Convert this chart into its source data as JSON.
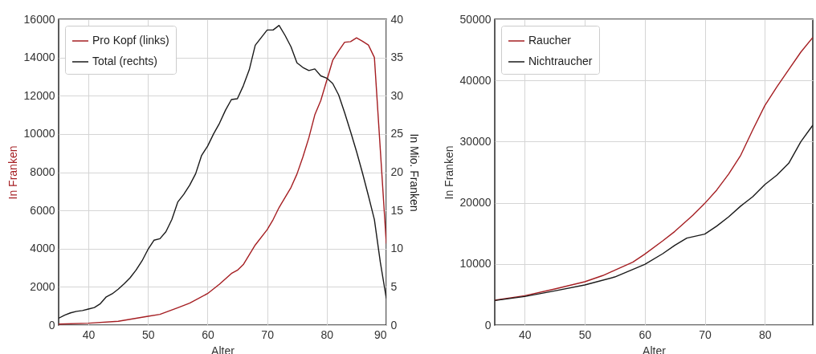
{
  "chart_data": [
    {
      "type": "line",
      "xlabel": "Alter",
      "ylabel": "In Franken",
      "y2label": "In Mio. Franken",
      "xlim": [
        35,
        90
      ],
      "xticks": [
        40,
        50,
        60,
        70,
        80,
        90
      ],
      "ylim": [
        0,
        16000
      ],
      "yticks": [
        0,
        2000,
        4000,
        6000,
        8000,
        10000,
        12000,
        14000,
        16000
      ],
      "y2lim": [
        0,
        40
      ],
      "y2ticks": [
        0,
        5,
        10,
        15,
        20,
        25,
        30,
        35,
        40
      ],
      "grid": true,
      "legend": "top left",
      "series": [
        {
          "name": "Pro Kopf (links)",
          "color": "#a51e22",
          "x": [
            35,
            40,
            45,
            50,
            52,
            55,
            57,
            60,
            62,
            64,
            65,
            66,
            68,
            70,
            71,
            72,
            74,
            75,
            76,
            77,
            78,
            79,
            80,
            81,
            82,
            83,
            84,
            85,
            86,
            87,
            88,
            89,
            90
          ],
          "values": [
            50,
            100,
            200,
            460,
            560,
            910,
            1150,
            1650,
            2140,
            2700,
            2870,
            3170,
            4190,
            4990,
            5520,
            6150,
            7200,
            7900,
            8800,
            9800,
            11000,
            11750,
            12800,
            13850,
            14350,
            14800,
            14830,
            15030,
            14850,
            14650,
            14000,
            9150,
            4260
          ]
        },
        {
          "name": "Total (rechts)",
          "color": "#1a1a1a",
          "axis": "y2",
          "x": [
            35,
            36,
            37,
            38,
            39,
            40,
            41,
            42,
            43,
            44,
            45,
            46,
            47,
            48,
            49,
            50,
            51,
            52,
            53,
            54,
            55,
            56,
            57,
            58,
            59,
            60,
            61,
            62,
            63,
            64,
            65,
            66,
            67,
            68,
            69,
            70,
            71,
            72,
            73,
            74,
            75,
            76,
            77,
            78,
            79,
            80,
            81,
            82,
            83,
            84,
            85,
            86,
            87,
            88,
            89,
            90
          ],
          "values": [
            0.9,
            1.3,
            1.6,
            1.8,
            1.9,
            2.1,
            2.3,
            2.8,
            3.7,
            4.1,
            4.7,
            5.4,
            6.2,
            7.2,
            8.4,
            9.9,
            11.1,
            11.3,
            12.2,
            13.8,
            16.1,
            17.1,
            18.3,
            19.8,
            22.2,
            23.4,
            25.0,
            26.4,
            28.1,
            29.5,
            29.6,
            31.3,
            33.4,
            36.6,
            37.6,
            38.6,
            38.6,
            39.2,
            37.9,
            36.4,
            34.3,
            33.7,
            33.3,
            33.5,
            32.6,
            32.3,
            31.6,
            30.1,
            27.8,
            25.3,
            22.7,
            19.9,
            16.9,
            13.8,
            8.2,
            3.5
          ]
        }
      ]
    },
    {
      "type": "line",
      "xlabel": "Alter",
      "ylabel": "In Franken",
      "xlim": [
        35,
        88
      ],
      "xticks": [
        40,
        50,
        60,
        70,
        80
      ],
      "ylim": [
        0,
        50000
      ],
      "yticks": [
        0,
        10000,
        20000,
        30000,
        40000,
        50000
      ],
      "grid": true,
      "legend": "top left",
      "series": [
        {
          "name": "Raucher",
          "color": "#a51e22",
          "x": [
            35,
            40,
            45,
            50,
            53,
            55,
            58,
            60,
            63,
            65,
            68,
            70,
            72,
            74,
            76,
            78,
            80,
            82,
            84,
            86,
            88
          ],
          "values": [
            4070,
            4810,
            5900,
            7090,
            8100,
            8970,
            10280,
            11590,
            13780,
            15310,
            17940,
            19900,
            22090,
            24720,
            27780,
            31930,
            35870,
            38930,
            41780,
            44620,
            47030
          ]
        },
        {
          "name": "Nichtraucher",
          "color": "#1a1a1a",
          "x": [
            35,
            40,
            45,
            50,
            55,
            60,
            63,
            65,
            67,
            70,
            72,
            74,
            76,
            78,
            80,
            82,
            84,
            86,
            88
          ],
          "values": [
            4020,
            4680,
            5600,
            6560,
            7870,
            9930,
            11680,
            13040,
            14220,
            14870,
            16190,
            17720,
            19470,
            21000,
            22970,
            24500,
            26470,
            29970,
            32680
          ]
        }
      ]
    }
  ]
}
